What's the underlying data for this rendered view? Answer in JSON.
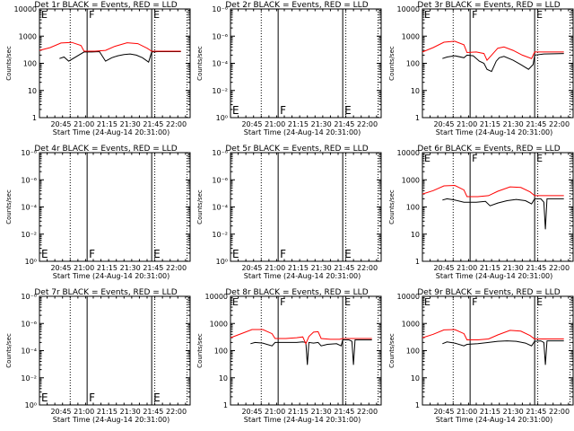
{
  "colors": {
    "events": "#000000",
    "lld": "#ff0000",
    "axis": "#000000",
    "background": "#ffffff"
  },
  "chart_data": [
    {
      "type": "line",
      "title": "Det 1r BLACK = Events, RED = LLD",
      "xlabel": "Start Time (24-Aug-14 20:31:00)",
      "ylabel": "Counts/sec",
      "yscale": "log",
      "ytick_labels": [
        "1",
        "10",
        "100",
        "1000",
        "10000"
      ],
      "xtick_labels": [
        "20:45",
        "21:00",
        "21:15",
        "21:30",
        "21:45",
        "22:00"
      ],
      "grid": false,
      "legend": "none",
      "region_labels": [
        "E",
        "F",
        "E"
      ],
      "series": [
        {
          "name": "Events",
          "x": [
            "20:44",
            "20:47",
            "20:50",
            "21:00",
            "21:05",
            "21:10",
            "21:14",
            "21:18",
            "21:22",
            "21:26",
            "21:30",
            "21:34",
            "21:38",
            "21:42",
            "21:44",
            "21:48",
            "21:56",
            "22:03"
          ],
          "y": [
            150,
            170,
            120,
            260,
            260,
            270,
            120,
            160,
            190,
            210,
            220,
            200,
            160,
            110,
            260,
            270,
            270,
            270
          ]
        },
        {
          "name": "LLD",
          "x": [
            "20:31",
            "20:38",
            "20:45",
            "20:52",
            "20:58",
            "21:00",
            "21:07",
            "21:14",
            "21:20",
            "21:28",
            "21:35",
            "21:41",
            "21:44",
            "21:50",
            "22:03"
          ],
          "y": [
            300,
            380,
            560,
            590,
            450,
            280,
            280,
            300,
            420,
            570,
            530,
            360,
            280,
            280,
            280
          ]
        }
      ]
    },
    {
      "type": "line",
      "title": "Det 2r BLACK = Events, RED = LLD",
      "xlabel": "Start Time (24-Aug-14 20:31:00)",
      "ylabel": "Counts/sec",
      "yscale": "log",
      "ytick_labels": [
        "10⁰",
        "10⁻²",
        "10⁻⁴",
        "10⁻⁶",
        "10⁻⁸"
      ],
      "xtick_labels": [
        "20:45",
        "21:00",
        "21:15",
        "21:30",
        "21:45",
        "22:00"
      ],
      "grid": false,
      "legend": "none",
      "region_labels": [
        "E",
        "F",
        "E"
      ],
      "series": []
    },
    {
      "type": "line",
      "title": "Det 3r BLACK = Events, RED = LLD",
      "xlabel": "Start Time (24-Aug-14 20:31:00)",
      "ylabel": "Counts/sec",
      "yscale": "log",
      "ytick_labels": [
        "1",
        "10",
        "100",
        "1000",
        "10000"
      ],
      "xtick_labels": [
        "20:45",
        "21:00",
        "21:15",
        "21:30",
        "21:45",
        "22:00"
      ],
      "grid": false,
      "legend": "none",
      "region_labels": [
        "E",
        "F",
        "E"
      ],
      "series": [
        {
          "name": "Events",
          "x": [
            "20:44",
            "20:47",
            "20:52",
            "20:58",
            "21:00",
            "21:04",
            "21:08",
            "21:11",
            "21:13",
            "21:16",
            "21:19",
            "21:21",
            "21:24",
            "21:30",
            "21:35",
            "21:40",
            "21:43",
            "21:44",
            "21:50",
            "22:03"
          ],
          "y": [
            150,
            170,
            190,
            160,
            200,
            190,
            120,
            100,
            60,
            50,
            120,
            160,
            180,
            130,
            90,
            60,
            90,
            200,
            220,
            230
          ]
        },
        {
          "name": "LLD",
          "x": [
            "20:31",
            "20:38",
            "20:45",
            "20:52",
            "20:58",
            "21:00",
            "21:06",
            "21:11",
            "21:13",
            "21:16",
            "21:20",
            "21:24",
            "21:30",
            "21:36",
            "21:42",
            "21:44",
            "21:50",
            "22:03"
          ],
          "y": [
            260,
            380,
            600,
            650,
            480,
            250,
            260,
            230,
            130,
            200,
            360,
            400,
            300,
            200,
            150,
            260,
            260,
            260
          ]
        }
      ]
    },
    {
      "type": "line",
      "title": "Det 4r BLACK = Events, RED = LLD",
      "xlabel": "Start Time (24-Aug-14 20:31:00)",
      "ylabel": "Counts/sec",
      "yscale": "log",
      "ytick_labels": [
        "10⁰",
        "10⁻²",
        "10⁻⁴",
        "10⁻⁶",
        "10⁻⁸"
      ],
      "xtick_labels": [
        "20:45",
        "21:00",
        "21:15",
        "21:30",
        "21:45",
        "22:00"
      ],
      "grid": false,
      "legend": "none",
      "region_labels": [
        "E",
        "F",
        "E"
      ],
      "series": []
    },
    {
      "type": "line",
      "title": "Det 5r BLACK = Events, RED = LLD",
      "xlabel": "Start Time (24-Aug-14 20:31:00)",
      "ylabel": "Counts/sec",
      "yscale": "log",
      "ytick_labels": [
        "10⁰",
        "10⁻²",
        "10⁻⁴",
        "10⁻⁶",
        "10⁻⁸"
      ],
      "xtick_labels": [
        "20:45",
        "21:00",
        "21:15",
        "21:30",
        "21:45",
        "22:00"
      ],
      "grid": false,
      "legend": "none",
      "region_labels": [
        "E",
        "F",
        "E"
      ],
      "series": []
    },
    {
      "type": "line",
      "title": "Det 6r BLACK = Events, RED = LLD",
      "xlabel": "Start Time (24-Aug-14 20:31:00)",
      "ylabel": "Counts/sec",
      "yscale": "log",
      "ytick_labels": [
        "1",
        "10",
        "100",
        "1000",
        "10000"
      ],
      "xtick_labels": [
        "20:45",
        "21:00",
        "21:15",
        "21:30",
        "21:45",
        "22:00"
      ],
      "grid": false,
      "legend": "none",
      "region_labels": [
        "E",
        "F",
        "E"
      ],
      "series": [
        {
          "name": "Events",
          "x": [
            "20:44",
            "20:47",
            "20:52",
            "20:58",
            "21:00",
            "21:06",
            "21:12",
            "21:15",
            "21:20",
            "21:26",
            "21:32",
            "21:38",
            "21:42",
            "21:44",
            "21:48",
            "21:50",
            "21:51",
            "21:52",
            "21:56",
            "22:03"
          ],
          "y": [
            180,
            200,
            180,
            150,
            150,
            150,
            160,
            110,
            140,
            170,
            190,
            170,
            130,
            200,
            200,
            150,
            15,
            200,
            200,
            200
          ]
        },
        {
          "name": "LLD",
          "x": [
            "20:31",
            "20:38",
            "20:45",
            "20:52",
            "20:58",
            "21:00",
            "21:07",
            "21:14",
            "21:20",
            "21:28",
            "21:35",
            "21:41",
            "21:44",
            "21:50",
            "22:03"
          ],
          "y": [
            300,
            400,
            600,
            620,
            420,
            240,
            240,
            260,
            380,
            550,
            520,
            360,
            260,
            260,
            260
          ]
        }
      ]
    },
    {
      "type": "line",
      "title": "Det 7r BLACK = Events, RED = LLD",
      "xlabel": "Start Time (24-Aug-14 20:31:00)",
      "ylabel": "Counts/sec",
      "yscale": "log",
      "ytick_labels": [
        "10⁰",
        "10⁻²",
        "10⁻⁴",
        "10⁻⁶",
        "10⁻⁸"
      ],
      "xtick_labels": [
        "20:45",
        "21:00",
        "21:15",
        "21:30",
        "21:45",
        "22:00"
      ],
      "grid": false,
      "legend": "none",
      "region_labels": [
        "E",
        "F",
        "E"
      ],
      "series": []
    },
    {
      "type": "line",
      "title": "Det 8r BLACK = Events, RED = LLD",
      "xlabel": "Start Time (24-Aug-14 20:31:00)",
      "ylabel": "Counts/sec",
      "yscale": "log",
      "ytick_labels": [
        "1",
        "10",
        "100",
        "1000",
        "10000"
      ],
      "xtick_labels": [
        "20:45",
        "21:00",
        "21:15",
        "21:30",
        "21:45",
        "22:00"
      ],
      "grid": false,
      "legend": "none",
      "region_labels": [
        "E",
        "F",
        "E"
      ],
      "series": [
        {
          "name": "Events",
          "x": [
            "20:44",
            "20:47",
            "20:52",
            "20:58",
            "21:00",
            "21:07",
            "21:14",
            "21:18",
            "21:20",
            "21:21",
            "21:22",
            "21:25",
            "21:28",
            "21:30",
            "21:34",
            "21:40",
            "21:43",
            "21:44",
            "21:48",
            "21:50",
            "21:51",
            "21:52",
            "21:56",
            "22:03"
          ],
          "y": [
            180,
            200,
            190,
            150,
            200,
            200,
            200,
            210,
            200,
            30,
            200,
            190,
            200,
            150,
            170,
            180,
            150,
            250,
            250,
            220,
            30,
            250,
            250,
            250
          ]
        },
        {
          "name": "LLD",
          "x": [
            "20:31",
            "20:38",
            "20:45",
            "20:52",
            "20:58",
            "21:00",
            "21:07",
            "21:14",
            "21:18",
            "21:20",
            "21:22",
            "21:25",
            "21:28",
            "21:30",
            "21:36",
            "21:42",
            "21:44",
            "21:50",
            "22:03"
          ],
          "y": [
            300,
            420,
            600,
            600,
            420,
            280,
            280,
            300,
            320,
            180,
            330,
            480,
            500,
            280,
            260,
            260,
            280,
            280,
            280
          ]
        }
      ]
    },
    {
      "type": "line",
      "title": "Det 9r BLACK = Events, RED = LLD",
      "xlabel": "Start Time (24-Aug-14 20:31:00)",
      "ylabel": "Counts/sec",
      "yscale": "log",
      "ytick_labels": [
        "1",
        "10",
        "100",
        "1000",
        "10000"
      ],
      "xtick_labels": [
        "20:45",
        "21:00",
        "21:15",
        "21:30",
        "21:45",
        "22:00"
      ],
      "grid": false,
      "legend": "none",
      "region_labels": [
        "E",
        "F",
        "E"
      ],
      "series": [
        {
          "name": "Events",
          "x": [
            "20:44",
            "20:47",
            "20:52",
            "20:58",
            "21:00",
            "21:07",
            "21:14",
            "21:20",
            "21:26",
            "21:32",
            "21:38",
            "21:42",
            "21:44",
            "21:48",
            "21:50",
            "21:51",
            "21:52",
            "21:56",
            "22:03"
          ],
          "y": [
            180,
            210,
            190,
            150,
            170,
            180,
            200,
            220,
            230,
            220,
            190,
            150,
            220,
            230,
            200,
            30,
            230,
            230,
            230
          ]
        },
        {
          "name": "LLD",
          "x": [
            "20:31",
            "20:38",
            "20:45",
            "20:52",
            "20:58",
            "21:00",
            "21:07",
            "21:14",
            "21:20",
            "21:28",
            "21:35",
            "21:41",
            "21:44",
            "21:50",
            "22:03"
          ],
          "y": [
            300,
            400,
            580,
            600,
            420,
            250,
            250,
            270,
            380,
            560,
            520,
            360,
            270,
            270,
            270
          ]
        }
      ]
    }
  ]
}
